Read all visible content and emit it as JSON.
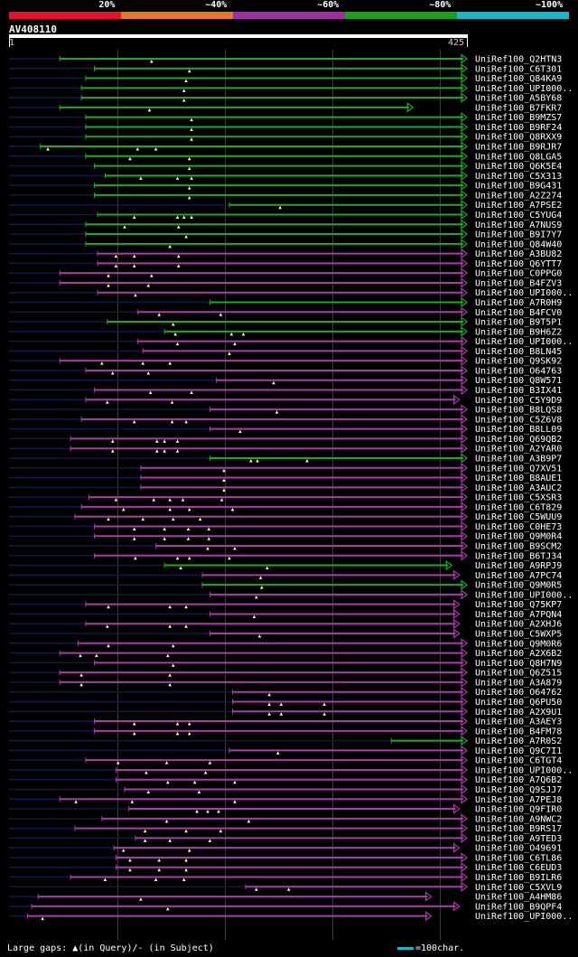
{
  "legend": [
    {
      "label": "20%",
      "color": "#e8112d"
    },
    {
      "label": "~40%",
      "color": "#e87722"
    },
    {
      "label": "~60%",
      "color": "#9b2fa0"
    },
    {
      "label": "~80%",
      "color": "#1aa31a"
    },
    {
      "label": "~100%",
      "color": "#16b9c9"
    }
  ],
  "query": {
    "id": "AV408110",
    "start": "1",
    "end": "425"
  },
  "colors": {
    "green": "#22a822",
    "magenta": "#a83ca8",
    "dark": "#101850",
    "tri": "#ffffa0"
  },
  "hits": [
    {
      "name": "UniRef100_Q2HTN3",
      "start": 48,
      "end": 425,
      "color": "green",
      "gaps": [
        133
      ]
    },
    {
      "name": "UniRef100_C6T301",
      "start": 80,
      "end": 425,
      "color": "green",
      "gaps": [
        168
      ]
    },
    {
      "name": "UniRef100_Q84KA9",
      "start": 72,
      "end": 425,
      "color": "green",
      "gaps": [
        165
      ]
    },
    {
      "name": "UniRef100_UPI000..",
      "start": 68,
      "end": 425,
      "color": "green",
      "gaps": [
        163
      ]
    },
    {
      "name": "UniRef100_A5BY68",
      "start": 68,
      "end": 425,
      "color": "green",
      "gaps": [
        163
      ]
    },
    {
      "name": "UniRef100_B7FKR7",
      "start": 48,
      "end": 375,
      "color": "green",
      "gaps": [
        131
      ]
    },
    {
      "name": "UniRef100_B9MZS7",
      "start": 72,
      "end": 425,
      "color": "green",
      "gaps": [
        170
      ]
    },
    {
      "name": "UniRef100_B9RF24",
      "start": 72,
      "end": 425,
      "color": "green",
      "gaps": [
        170
      ]
    },
    {
      "name": "UniRef100_Q8RXX9",
      "start": 72,
      "end": 425,
      "color": "green",
      "gaps": [
        170
      ]
    },
    {
      "name": "UniRef100_B9RJR7",
      "start": 30,
      "end": 425,
      "color": "green",
      "gaps": [
        37,
        120,
        137
      ]
    },
    {
      "name": "UniRef100_Q8LGA5",
      "start": 72,
      "end": 425,
      "color": "green",
      "gaps": [
        113,
        168
      ]
    },
    {
      "name": "UniRef100_Q6K5E4",
      "start": 80,
      "end": 425,
      "color": "green",
      "gaps": [
        168
      ]
    },
    {
      "name": "UniRef100_C5X313",
      "start": 90,
      "end": 425,
      "color": "green",
      "gaps": [
        123,
        157,
        170
      ]
    },
    {
      "name": "UniRef100_B9G431",
      "start": 80,
      "end": 425,
      "color": "green",
      "gaps": [
        168
      ]
    },
    {
      "name": "UniRef100_A2Z274",
      "start": 80,
      "end": 425,
      "color": "green",
      "gaps": [
        168
      ]
    },
    {
      "name": "UniRef100_A7PSE2",
      "start": 205,
      "end": 425,
      "color": "green",
      "gaps": [
        252
      ]
    },
    {
      "name": "UniRef100_C5YUG4",
      "start": 83,
      "end": 425,
      "color": "green",
      "gaps": [
        117,
        157,
        163,
        170
      ]
    },
    {
      "name": "UniRef100_A7NUS9",
      "start": 72,
      "end": 425,
      "color": "green",
      "gaps": [
        108,
        158
      ]
    },
    {
      "name": "UniRef100_B9I7Y7",
      "start": 72,
      "end": 425,
      "color": "green",
      "gaps": [
        165
      ]
    },
    {
      "name": "UniRef100_Q84W40",
      "start": 72,
      "end": 425,
      "color": "green",
      "gaps": [
        150
      ]
    },
    {
      "name": "UniRef100_A3BU82",
      "start": 83,
      "end": 425,
      "color": "magenta",
      "gaps": [
        100,
        117,
        158
      ]
    },
    {
      "name": "UniRef100_Q6YTT7",
      "start": 83,
      "end": 425,
      "color": "magenta",
      "gaps": [
        100,
        117,
        158
      ]
    },
    {
      "name": "UniRef100_C0PPG0",
      "start": 48,
      "end": 425,
      "color": "magenta",
      "gaps": [
        93,
        133
      ]
    },
    {
      "name": "UniRef100_B4FZV3",
      "start": 48,
      "end": 425,
      "color": "magenta",
      "gaps": [
        93,
        130
      ]
    },
    {
      "name": "UniRef100_UPI000..",
      "start": 83,
      "end": 425,
      "color": "magenta",
      "gaps": [
        118
      ]
    },
    {
      "name": "UniRef100_A7R0H9",
      "start": 187,
      "end": 425,
      "color": "green",
      "gaps": []
    },
    {
      "name": "UniRef100_B4FCV0",
      "start": 120,
      "end": 425,
      "color": "magenta",
      "gaps": [
        140,
        197
      ]
    },
    {
      "name": "UniRef100_B9T5P1",
      "start": 92,
      "end": 425,
      "color": "green",
      "gaps": [
        153
      ]
    },
    {
      "name": "UniRef100_B9H6Z2",
      "start": 145,
      "end": 425,
      "color": "green",
      "gaps": [
        155,
        207,
        218
      ]
    },
    {
      "name": "UniRef100_UPI000..",
      "start": 120,
      "end": 425,
      "color": "magenta",
      "gaps": [
        157,
        210
      ]
    },
    {
      "name": "UniRef100_B8LN45",
      "start": 125,
      "end": 425,
      "color": "magenta",
      "gaps": [
        205
      ]
    },
    {
      "name": "UniRef100_Q9SK92",
      "start": 48,
      "end": 425,
      "color": "magenta",
      "gaps": [
        87,
        125,
        150
      ]
    },
    {
      "name": "UniRef100_O64763",
      "start": 72,
      "end": 425,
      "color": "magenta",
      "gaps": [
        97,
        130
      ]
    },
    {
      "name": "UniRef100_Q8W571",
      "start": 193,
      "end": 425,
      "color": "magenta",
      "gaps": [
        246
      ]
    },
    {
      "name": "UniRef100_B3IX41",
      "start": 80,
      "end": 425,
      "color": "magenta",
      "gaps": [
        132,
        170
      ]
    },
    {
      "name": "UniRef100_C5Y9D9",
      "start": 72,
      "end": 418,
      "color": "magenta",
      "gaps": [
        92,
        152
      ]
    },
    {
      "name": "UniRef100_B8LQS8",
      "start": 187,
      "end": 425,
      "color": "magenta",
      "gaps": [
        249
      ]
    },
    {
      "name": "UniRef100_C5Z6V8",
      "start": 68,
      "end": 425,
      "color": "magenta",
      "gaps": [
        117,
        152,
        165
      ]
    },
    {
      "name": "UniRef100_B8LL09",
      "start": 187,
      "end": 425,
      "color": "magenta",
      "gaps": [
        215
      ]
    },
    {
      "name": "UniRef100_Q69QB2",
      "start": 58,
      "end": 425,
      "color": "magenta",
      "gaps": [
        97,
        138,
        145,
        157
      ]
    },
    {
      "name": "UniRef100_A2YAR0",
      "start": 58,
      "end": 425,
      "color": "magenta",
      "gaps": [
        97,
        138,
        145,
        157
      ]
    },
    {
      "name": "UniRef100_A3B9P7",
      "start": 187,
      "end": 425,
      "color": "green",
      "gaps": [
        225,
        231,
        277
      ]
    },
    {
      "name": "UniRef100_Q7XV51",
      "start": 123,
      "end": 425,
      "color": "magenta",
      "gaps": [
        200
      ]
    },
    {
      "name": "UniRef100_B8AUE1",
      "start": 123,
      "end": 425,
      "color": "magenta",
      "gaps": [
        200
      ]
    },
    {
      "name": "UniRef100_A3AUC2",
      "start": 123,
      "end": 425,
      "color": "magenta",
      "gaps": [
        200
      ]
    },
    {
      "name": "UniRef100_C5XSR3",
      "start": 75,
      "end": 425,
      "color": "magenta",
      "gaps": [
        100,
        135,
        150,
        162,
        198
      ]
    },
    {
      "name": "UniRef100_C6T829",
      "start": 68,
      "end": 425,
      "color": "magenta",
      "gaps": [
        107,
        150,
        168,
        208
      ]
    },
    {
      "name": "UniRef100_C5WUU9",
      "start": 62,
      "end": 425,
      "color": "magenta",
      "gaps": [
        93,
        125,
        153,
        178
      ]
    },
    {
      "name": "UniRef100_C0HE73",
      "start": 80,
      "end": 425,
      "color": "magenta",
      "gaps": [
        117,
        145,
        167,
        186
      ]
    },
    {
      "name": "UniRef100_Q9M0R4",
      "start": 80,
      "end": 425,
      "color": "magenta",
      "gaps": [
        117,
        145,
        167,
        186
      ]
    },
    {
      "name": "UniRef100_B9SCM2",
      "start": 137,
      "end": 425,
      "color": "magenta",
      "gaps": [
        185,
        210
      ]
    },
    {
      "name": "UniRef100_B6TJ34",
      "start": 80,
      "end": 425,
      "color": "magenta",
      "gaps": [
        118,
        157,
        168,
        205
      ]
    },
    {
      "name": "UniRef100_A9RPJ9",
      "start": 145,
      "end": 411,
      "color": "green",
      "gaps": [
        160,
        240
      ]
    },
    {
      "name": "UniRef100_A7PC74",
      "start": 180,
      "end": 418,
      "color": "magenta",
      "gaps": [
        234
      ]
    },
    {
      "name": "UniRef100_Q9M0R5",
      "start": 180,
      "end": 425,
      "color": "green",
      "gaps": [
        235
      ]
    },
    {
      "name": "UniRef100_UPI000..",
      "start": 187,
      "end": 425,
      "color": "magenta",
      "gaps": [
        230
      ]
    },
    {
      "name": "UniRef100_Q75KP7",
      "start": 72,
      "end": 418,
      "color": "magenta",
      "gaps": [
        93,
        150,
        165
      ]
    },
    {
      "name": "UniRef100_A7PQN4",
      "start": 187,
      "end": 418,
      "color": "magenta",
      "gaps": [
        228
      ]
    },
    {
      "name": "UniRef100_A2XHJ6",
      "start": 72,
      "end": 418,
      "color": "magenta",
      "gaps": [
        92,
        150,
        165
      ]
    },
    {
      "name": "UniRef100_C5WXP5",
      "start": 187,
      "end": 418,
      "color": "magenta",
      "gaps": [
        233
      ]
    },
    {
      "name": "UniRef100_Q9M0R6",
      "start": 65,
      "end": 425,
      "color": "magenta",
      "gaps": [
        93,
        153
      ]
    },
    {
      "name": "UniRef100_A2X6B2",
      "start": 48,
      "end": 425,
      "color": "magenta",
      "gaps": [
        67,
        82,
        148
      ]
    },
    {
      "name": "UniRef100_Q8H7N9",
      "start": 80,
      "end": 425,
      "color": "magenta",
      "gaps": [
        153
      ]
    },
    {
      "name": "UniRef100_Q6Z515",
      "start": 48,
      "end": 425,
      "color": "magenta",
      "gaps": [
        68,
        150
      ]
    },
    {
      "name": "UniRef100_A3A879",
      "start": 48,
      "end": 425,
      "color": "magenta",
      "gaps": [
        68,
        150
      ]
    },
    {
      "name": "UniRef100_O64762",
      "start": 208,
      "end": 425,
      "color": "magenta",
      "gaps": [
        242
      ]
    },
    {
      "name": "UniRef100_Q6PU50",
      "start": 208,
      "end": 425,
      "color": "magenta",
      "gaps": [
        242,
        253,
        293
      ]
    },
    {
      "name": "UniRef100_A2X9U1",
      "start": 208,
      "end": 425,
      "color": "magenta",
      "gaps": [
        242,
        253,
        293
      ]
    },
    {
      "name": "UniRef100_A3AEY3",
      "start": 80,
      "end": 425,
      "color": "magenta",
      "gaps": [
        117,
        157,
        168
      ]
    },
    {
      "name": "UniRef100_B4FM78",
      "start": 80,
      "end": 425,
      "color": "magenta",
      "gaps": [
        117,
        157,
        168
      ]
    },
    {
      "name": "UniRef100_A7R0S2",
      "start": 355,
      "end": 425,
      "color": "green",
      "gaps": []
    },
    {
      "name": "UniRef100_Q9C7I1",
      "start": 205,
      "end": 425,
      "color": "magenta",
      "gaps": [
        250
      ]
    },
    {
      "name": "UniRef100_C6TGT4",
      "start": 72,
      "end": 425,
      "color": "magenta",
      "gaps": [
        102,
        147,
        187
      ]
    },
    {
      "name": "UniRef100_UPI000..",
      "start": 100,
      "end": 425,
      "color": "magenta",
      "gaps": [
        128,
        183
      ]
    },
    {
      "name": "UniRef100_A7Q6B2",
      "start": 100,
      "end": 425,
      "color": "magenta",
      "gaps": [
        148,
        173,
        210
      ]
    },
    {
      "name": "UniRef100_Q9SJJ7",
      "start": 108,
      "end": 425,
      "color": "magenta",
      "gaps": [
        130,
        177
      ]
    },
    {
      "name": "UniRef100_A7PEJ8",
      "start": 48,
      "end": 425,
      "color": "magenta",
      "gaps": [
        63,
        115,
        210
      ]
    },
    {
      "name": "UniRef100_Q9FIR0",
      "start": 112,
      "end": 418,
      "color": "magenta",
      "gaps": [
        175,
        185,
        195
      ]
    },
    {
      "name": "UniRef100_A9NWC2",
      "start": 87,
      "end": 425,
      "color": "magenta",
      "gaps": [
        147,
        223
      ]
    },
    {
      "name": "UniRef100_B9RS17",
      "start": 62,
      "end": 425,
      "color": "magenta",
      "gaps": [
        127,
        165,
        197
      ]
    },
    {
      "name": "UniRef100_A9TED3",
      "start": 118,
      "end": 425,
      "color": "magenta",
      "gaps": [
        127,
        150,
        187
      ]
    },
    {
      "name": "UniRef100_O49691",
      "start": 98,
      "end": 418,
      "color": "magenta",
      "gaps": [
        107,
        168
      ]
    },
    {
      "name": "UniRef100_C6TL86",
      "start": 100,
      "end": 425,
      "color": "magenta",
      "gaps": [
        113,
        140,
        165
      ]
    },
    {
      "name": "UniRef100_C6EUD3",
      "start": 100,
      "end": 425,
      "color": "magenta",
      "gaps": [
        113,
        140,
        165
      ]
    },
    {
      "name": "UniRef100_B9ILR6",
      "start": 58,
      "end": 425,
      "color": "magenta",
      "gaps": [
        90,
        137,
        163
      ]
    },
    {
      "name": "UniRef100_C5XVL9",
      "start": 220,
      "end": 425,
      "color": "magenta",
      "gaps": [
        230,
        260
      ]
    },
    {
      "name": "UniRef100_A4HM86",
      "start": 28,
      "end": 392,
      "color": "magenta",
      "gaps": [
        123
      ]
    },
    {
      "name": "UniRef100_B9QPF4",
      "start": 22,
      "end": 418,
      "color": "magenta",
      "gaps": [
        148
      ]
    },
    {
      "name": "UniRef100_UPI000..",
      "start": 18,
      "end": 392,
      "color": "magenta",
      "gaps": [
        32
      ]
    }
  ],
  "footer": {
    "gaps_text": "Large gaps: ▲(in Query)/- (in Subject)",
    "scale_text": "=100char."
  }
}
